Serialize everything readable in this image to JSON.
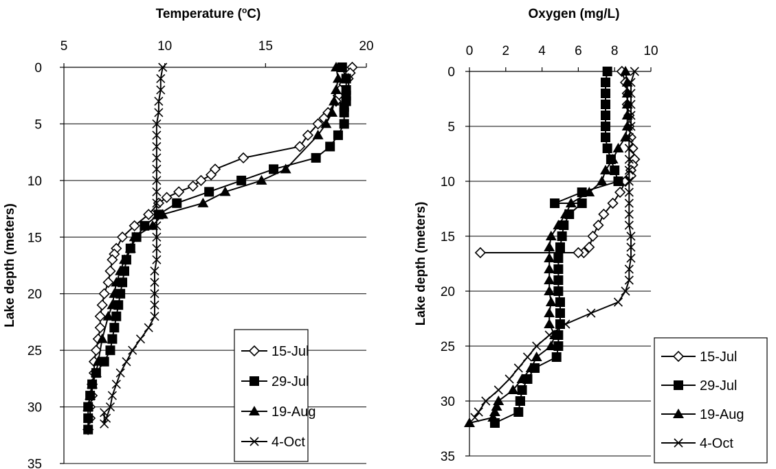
{
  "charts": [
    {
      "type": "line",
      "x_title": "Temperature (",
      "x_title_sup": "o",
      "x_title_end": "C)",
      "y_title": "Lake depth (meters)",
      "xlim": [
        5,
        20
      ],
      "xticks": [
        5,
        10,
        15,
        20
      ],
      "ylim": [
        0,
        35
      ],
      "yticks": [
        0,
        5,
        10,
        15,
        20,
        25,
        30,
        35
      ],
      "grid": "horizontal",
      "legend_position": "bottom-right",
      "series": [
        {
          "name": "15-Jul",
          "marker": "diamond",
          "x": [
            19.3,
            19.2,
            19.1,
            18.9,
            18.7,
            18.6,
            18.5,
            18.1,
            17.9,
            17.6,
            17.1,
            16.7,
            13.9,
            12.5,
            12.3,
            11.8,
            11.4,
            10.7,
            10.1,
            9.7,
            9.2,
            8.5,
            7.9,
            7.6,
            7.5,
            7.4,
            7.3,
            7.2,
            7.0,
            6.9,
            6.8,
            6.8,
            6.7,
            6.6,
            6.5,
            6.5,
            6.4,
            6.4,
            6.3,
            6.3,
            6.2
          ],
          "y": [
            0,
            0.5,
            1,
            1.5,
            2,
            2.5,
            3,
            4,
            4.5,
            5,
            6,
            7,
            8,
            9,
            9.5,
            10,
            10.5,
            11,
            11.5,
            12,
            13,
            14,
            15,
            16,
            16.5,
            17,
            18,
            19,
            20,
            21,
            22,
            23,
            24,
            25,
            26,
            27,
            28,
            29,
            30,
            31,
            32
          ]
        },
        {
          "name": "29-Jul",
          "marker": "square",
          "x": [
            18.8,
            19.0,
            19.0,
            19.0,
            19.0,
            18.9,
            18.9,
            18.9,
            18.6,
            18.2,
            17.5,
            15.4,
            13.8,
            12.2,
            10.6,
            9.7,
            9.0,
            8.6,
            8.3,
            8.1,
            8.0,
            7.9,
            7.8,
            7.7,
            7.6,
            7.5,
            7.4,
            7.3,
            7.0,
            6.6,
            6.4,
            6.3,
            6.2,
            6.2,
            6.2
          ],
          "y": [
            0,
            1,
            2,
            2.5,
            3,
            3.5,
            4,
            5,
            6,
            7,
            8,
            9,
            10,
            11,
            12,
            13,
            14,
            15,
            16,
            17,
            18,
            19,
            20,
            21,
            22,
            23,
            24,
            25,
            26,
            27,
            28,
            29,
            30,
            31,
            32
          ]
        },
        {
          "name": "19-Aug",
          "marker": "triangle",
          "x": [
            18.5,
            18.6,
            18.5,
            18.4,
            18.3,
            18.0,
            17.6,
            16.0,
            14.8,
            13.0,
            11.9,
            9.9,
            9.4,
            8.5,
            8.3,
            8.0,
            7.8,
            7.6,
            7.5,
            7.4,
            7.2,
            6.9,
            6.7,
            6.6,
            6.4,
            6.3,
            6.2
          ],
          "y": [
            0,
            1,
            2,
            3,
            4,
            5,
            6,
            9,
            10,
            11,
            12,
            13,
            14,
            15,
            16,
            17,
            18,
            19,
            20,
            21,
            22,
            24,
            26,
            27,
            28,
            29,
            30
          ]
        },
        {
          "name": "4-Oct",
          "marker": "x",
          "x": [
            9.9,
            9.8,
            9.8,
            9.7,
            9.7,
            9.6,
            9.6,
            9.6,
            9.6,
            9.6,
            9.6,
            9.6,
            9.6,
            9.6,
            9.6,
            9.6,
            9.6,
            9.6,
            9.5,
            9.5,
            9.5,
            9.5,
            9.5,
            9.2,
            8.8,
            8.4,
            8.1,
            7.8,
            7.6,
            7.4,
            7.3,
            7.1,
            7.0,
            7.0
          ],
          "y": [
            0,
            1,
            2,
            3,
            4,
            5,
            6,
            7,
            8,
            9,
            10,
            11,
            12,
            13,
            14,
            15,
            16,
            17,
            18,
            19,
            20,
            21,
            22,
            23,
            24,
            25,
            26,
            27,
            28,
            29,
            30,
            31,
            31.5,
            30.5
          ]
        }
      ]
    },
    {
      "type": "line",
      "x_title": "Oxygen (mg/L)",
      "y_title": "Lake depth (meters)",
      "xlim": [
        0,
        10
      ],
      "xticks": [
        0,
        2,
        4,
        6,
        8,
        10
      ],
      "ylim": [
        0,
        35
      ],
      "yticks": [
        0,
        5,
        10,
        15,
        20,
        25,
        30,
        35
      ],
      "grid": "horizontal",
      "legend_position": "bottom-right",
      "series": [
        {
          "name": "15-Jul",
          "marker": "diamond",
          "x": [
            8.4,
            8.6,
            8.7,
            8.7,
            8.8,
            8.8,
            8.9,
            9.0,
            9.1,
            9.0,
            8.9,
            8.9,
            8.6,
            8.3,
            7.9,
            7.4,
            7.1,
            6.8,
            6.6,
            6.3,
            6.0,
            0.6
          ],
          "y": [
            0,
            1,
            2,
            3,
            4,
            5,
            6,
            7,
            8,
            8.5,
            9,
            9.5,
            10,
            11,
            12,
            13,
            14,
            15,
            16,
            16.5,
            16.5,
            16.5
          ]
        },
        {
          "name": "29-Jul",
          "marker": "square",
          "x": [
            7.6,
            7.5,
            7.5,
            7.5,
            7.5,
            7.5,
            7.5,
            7.6,
            7.8,
            8.0,
            8.2,
            6.2,
            4.7,
            6.2,
            5.5,
            5.2,
            5.1,
            5.0,
            4.9,
            4.9,
            4.9,
            4.9,
            5.0,
            5.0,
            5.0,
            4.9,
            4.9,
            4.8,
            3.6,
            3.2,
            2.9,
            2.8,
            2.8,
            2.8,
            2.7,
            1.4
          ],
          "y": [
            0,
            1,
            2,
            3,
            4,
            5,
            6,
            7,
            8,
            9,
            10,
            11,
            12,
            12,
            13,
            14,
            15,
            16,
            17,
            18,
            19,
            20,
            21,
            22,
            23,
            24,
            25,
            26,
            27,
            28,
            29,
            30,
            30,
            30,
            31,
            32
          ]
        },
        {
          "name": "19-Aug",
          "marker": "triangle",
          "x": [
            8.6,
            8.7,
            8.7,
            8.7,
            8.7,
            8.7,
            8.6,
            8.2,
            7.9,
            7.5,
            7.3,
            6.6,
            5.6,
            5.3,
            4.9,
            4.5,
            4.4,
            4.4,
            4.4,
            4.4,
            4.4,
            4.5,
            4.4,
            4.4,
            4.7,
            4.5,
            3.7,
            3.4,
            2.9,
            2.4,
            1.6,
            1.5,
            1.4,
            1.3,
            0.0
          ],
          "y": [
            0,
            1,
            2,
            3,
            4,
            5,
            6,
            7,
            8,
            9,
            10,
            11,
            12,
            13,
            14,
            15,
            16,
            17,
            18,
            19,
            20,
            21,
            22,
            23,
            24,
            25,
            26,
            27,
            28,
            29,
            30,
            30.5,
            31,
            31.5,
            32
          ]
        },
        {
          "name": "4-Oct",
          "marker": "x",
          "x": [
            9.1,
            8.9,
            8.9,
            8.9,
            8.9,
            8.9,
            8.8,
            8.8,
            8.8,
            8.8,
            8.8,
            8.8,
            8.8,
            8.8,
            8.8,
            8.9,
            8.9,
            8.9,
            8.8,
            8.8,
            8.6,
            8.2,
            6.7,
            5.3,
            4.4,
            3.7,
            3.2,
            2.7,
            2.2,
            1.6,
            0.9,
            0.5,
            0.3
          ],
          "y": [
            0,
            1,
            2,
            3,
            4,
            5,
            6,
            7,
            8,
            9,
            10,
            11,
            12,
            13,
            14,
            15,
            16,
            17,
            18,
            19,
            20,
            21,
            22,
            23,
            24,
            25,
            26,
            27,
            28,
            29,
            30,
            31,
            31.5
          ]
        }
      ]
    }
  ]
}
